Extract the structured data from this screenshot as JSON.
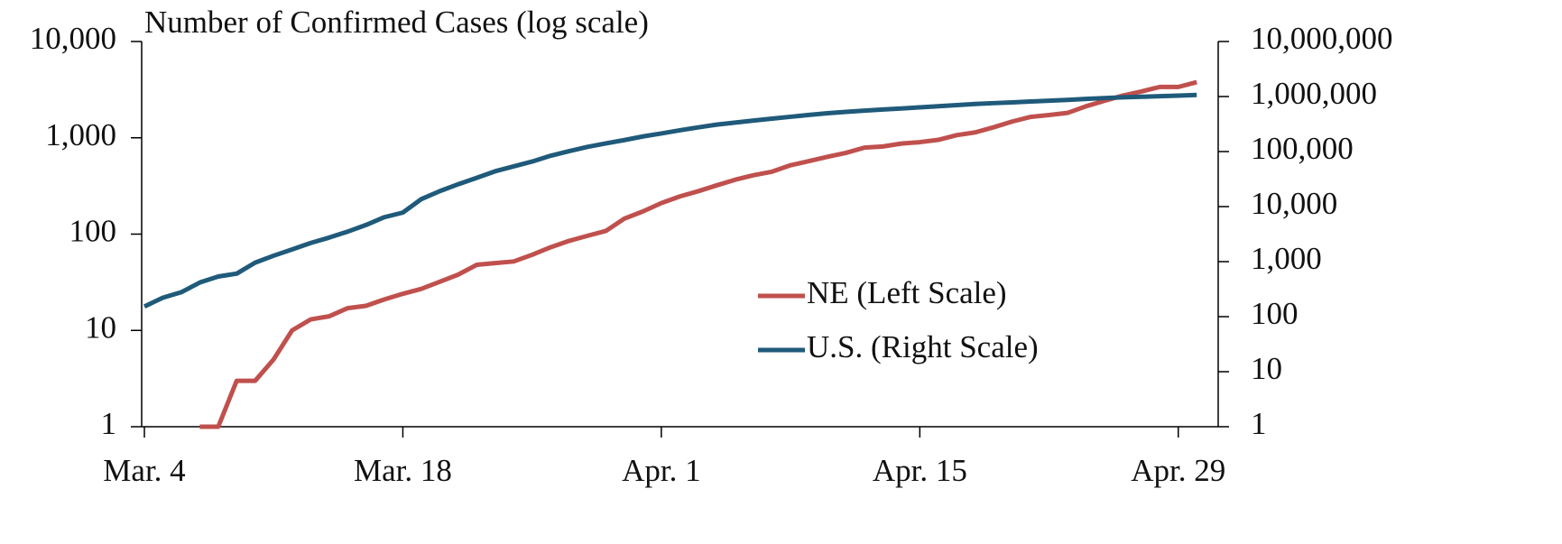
{
  "chart_data": {
    "type": "line",
    "title": "Number of Confirmed Cases (log scale)",
    "categories": [
      "Mar. 4",
      null,
      null,
      null,
      null,
      null,
      null,
      null,
      null,
      null,
      null,
      null,
      null,
      null,
      "Mar. 18",
      null,
      null,
      null,
      null,
      null,
      null,
      null,
      null,
      null,
      null,
      null,
      null,
      null,
      "Apr. 1",
      null,
      null,
      null,
      null,
      null,
      null,
      null,
      null,
      null,
      null,
      null,
      null,
      null,
      "Apr. 15",
      null,
      null,
      null,
      null,
      null,
      null,
      null,
      null,
      null,
      null,
      null,
      null,
      null,
      "Apr. 29",
      null
    ],
    "series": [
      {
        "name": "NE (Left Scale)",
        "color": "#c0504d",
        "axis": "y",
        "values": [
          null,
          null,
          null,
          1,
          1,
          3,
          3,
          5,
          10,
          13,
          14,
          17,
          18,
          21,
          24,
          27,
          32,
          38,
          48,
          50,
          52,
          61,
          73,
          85,
          96,
          108,
          145,
          172,
          210,
          246,
          279,
          321,
          367,
          409,
          445,
          519,
          573,
          635,
          698,
          791,
          813,
          871,
          901,
          952,
          1066,
          1138,
          1287,
          1474,
          1648,
          1722,
          1813,
          2124,
          2421,
          2745,
          3028,
          3374,
          3374,
          3784
        ]
      },
      {
        "name": "U.S. (Right Scale)",
        "color": "#1f5a7a",
        "axis": "y2",
        "values": [
          153,
          221,
          278,
          417,
          537,
          605,
          959,
          1281,
          1663,
          2179,
          2726,
          3499,
          4632,
          6421,
          7786,
          13680,
          19101,
          25493,
          33276,
          43847,
          53740,
          65778,
          83836,
          101657,
          121478,
          140886,
          161807,
          188172,
          213242,
          243622,
          275367,
          308650,
          336802,
          366317,
          397121,
          428654,
          462780,
          496535,
          526396,
          555313,
          580619,
          607670,
          636350,
          667592,
          699706,
          732197,
          758809,
          784326,
          811865,
          840351,
          869170,
          905358,
          938154,
          965785,
          988197,
          1012582,
          1039909,
          1069424
        ]
      }
    ],
    "log_scale": true,
    "ylim": [
      1,
      10000
    ],
    "yticks": [
      1,
      10,
      100,
      {
        "value": 1000,
        "label": "1,000"
      },
      {
        "value": 10000,
        "label": "10,000"
      }
    ],
    "y2lim": [
      1,
      10000000
    ],
    "y2ticks": [
      1,
      10,
      100,
      {
        "value": 1000,
        "label": "1,000"
      },
      {
        "value": 10000,
        "label": "10,000"
      },
      {
        "value": 100000,
        "label": "100,000"
      },
      {
        "value": 1000000,
        "label": "1,000,000"
      },
      {
        "value": 10000000,
        "label": "10,000,000"
      }
    ],
    "grid": false,
    "legend": "center-right"
  }
}
